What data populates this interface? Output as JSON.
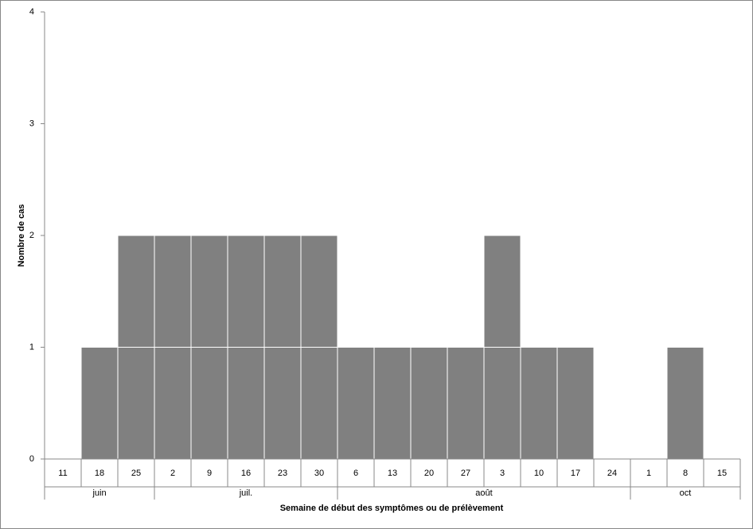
{
  "chart_data": {
    "type": "bar",
    "y_axis_label": "Nombre de cas",
    "x_axis_label": "Semaine de début des symptômes ou de prélèvement",
    "categories": [
      "11",
      "18",
      "25",
      "2",
      "9",
      "16",
      "23",
      "30",
      "6",
      "13",
      "20",
      "27",
      "3",
      "10",
      "17",
      "24",
      "1",
      "8",
      "15"
    ],
    "values": [
      0,
      1,
      2,
      2,
      2,
      2,
      2,
      2,
      1,
      1,
      1,
      1,
      2,
      1,
      1,
      0,
      0,
      1,
      0
    ],
    "month_groups": [
      {
        "label": "juin",
        "count": 3
      },
      {
        "label": "juil.",
        "count": 5
      },
      {
        "label": "août",
        "count": 8
      },
      {
        "label": "oct",
        "count": 3
      }
    ],
    "color": "#808080",
    "ylim": [
      0,
      4
    ],
    "yticks": [
      0,
      1,
      2,
      3,
      4
    ]
  }
}
